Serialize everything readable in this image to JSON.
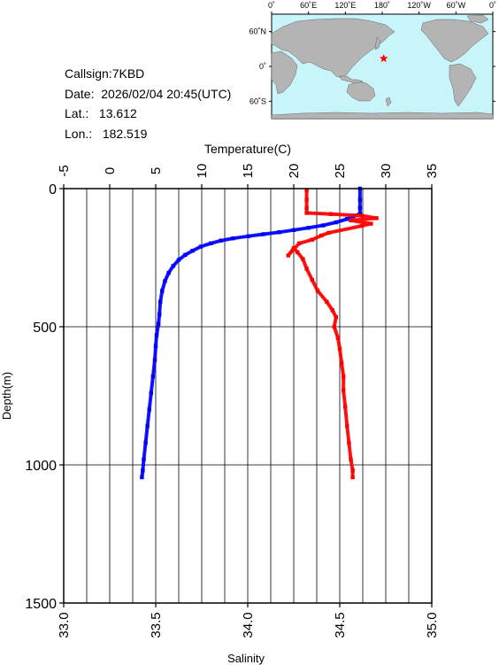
{
  "station": {
    "callsign_label": "Callsign:",
    "callsign": "7KBD",
    "date_label": "Date:",
    "date": "2026/02/04 20:45(UTC)",
    "lat_label": "Lat.:",
    "lat": "13.612",
    "lon_label": "Lon.:",
    "lon": "182.519"
  },
  "map": {
    "lon_ticks": [
      "0˚",
      "60˚E",
      "120˚E",
      "180˚",
      "120˚W",
      "60˚W",
      "0˚"
    ],
    "lat_ticks": [
      "60˚N",
      "0˚",
      "60˚S"
    ],
    "marker": {
      "lon": 182.5,
      "lat": 13.6
    },
    "colors": {
      "ocean": "#c8f5fa",
      "land": "#b4b4b4",
      "marker": "#ff0000"
    }
  },
  "chart_data": {
    "type": "line",
    "title": "",
    "y_axis": {
      "label": "Depth(m)",
      "lim": [
        0,
        1500
      ],
      "inverted": true,
      "ticks": [
        0,
        500,
        1000,
        1500
      ],
      "tick_labels": [
        "0",
        "500",
        "1000",
        "1500"
      ]
    },
    "x_axis_top": {
      "label": "Temperature(C)",
      "lim": [
        -5,
        35
      ],
      "ticks": [
        -5,
        0,
        5,
        10,
        15,
        20,
        25,
        30,
        35
      ],
      "tick_labels": [
        "-5",
        "0",
        "5",
        "10",
        "15",
        "20",
        "25",
        "30",
        "35"
      ]
    },
    "x_axis_bottom": {
      "label": "Salinity",
      "lim": [
        33.0,
        35.0
      ],
      "ticks": [
        33.0,
        33.5,
        34.0,
        34.5,
        35.0
      ],
      "tick_labels": [
        "33.0",
        "33.5",
        "34.0",
        "34.5",
        "35.0"
      ]
    },
    "grid": true,
    "series": [
      {
        "axis": "temperature",
        "color": "#0000ff",
        "points": [
          [
            27.2,
            0
          ],
          [
            27.2,
            40
          ],
          [
            27.2,
            70
          ],
          [
            27.2,
            92
          ],
          [
            26.5,
            100
          ],
          [
            25.8,
            110
          ],
          [
            24.6,
            122
          ],
          [
            23.2,
            133
          ],
          [
            21.6,
            142
          ],
          [
            20.0,
            150
          ],
          [
            18.4,
            158
          ],
          [
            16.7,
            165
          ],
          [
            15.1,
            172
          ],
          [
            13.4,
            180
          ],
          [
            12.1,
            188
          ],
          [
            11.0,
            198
          ],
          [
            9.9,
            210
          ],
          [
            9.0,
            225
          ],
          [
            8.2,
            240
          ],
          [
            7.5,
            258
          ],
          [
            6.9,
            280
          ],
          [
            6.4,
            305
          ],
          [
            6.0,
            335
          ],
          [
            5.7,
            370
          ],
          [
            5.5,
            410
          ],
          [
            5.4,
            455
          ],
          [
            5.3,
            490
          ],
          [
            5.1,
            530
          ],
          [
            5.0,
            570
          ],
          [
            4.9,
            620
          ],
          [
            4.7,
            680
          ],
          [
            4.5,
            740
          ],
          [
            4.3,
            800
          ],
          [
            4.1,
            860
          ],
          [
            3.9,
            920
          ],
          [
            3.7,
            980
          ],
          [
            3.6,
            1020
          ],
          [
            3.5,
            1045
          ]
        ]
      },
      {
        "axis": "salinity",
        "color": "#ff0000",
        "points": [
          [
            34.32,
            5
          ],
          [
            34.32,
            40
          ],
          [
            34.32,
            70
          ],
          [
            34.32,
            88
          ],
          [
            34.45,
            92
          ],
          [
            34.62,
            98
          ],
          [
            34.7,
            107
          ],
          [
            34.56,
            115
          ],
          [
            34.67,
            127
          ],
          [
            34.62,
            135
          ],
          [
            34.44,
            160
          ],
          [
            34.4,
            170
          ],
          [
            34.35,
            185
          ],
          [
            34.28,
            198
          ],
          [
            34.22,
            242
          ],
          [
            34.25,
            215
          ],
          [
            34.27,
            230
          ],
          [
            34.3,
            255
          ],
          [
            34.32,
            290
          ],
          [
            34.35,
            330
          ],
          [
            34.38,
            370
          ],
          [
            34.43,
            410
          ],
          [
            34.46,
            440
          ],
          [
            34.48,
            465
          ],
          [
            34.47,
            500
          ],
          [
            34.49,
            540
          ],
          [
            34.5,
            580
          ],
          [
            34.51,
            630
          ],
          [
            34.52,
            680
          ],
          [
            34.52,
            730
          ],
          [
            34.53,
            790
          ],
          [
            34.54,
            860
          ],
          [
            34.55,
            920
          ],
          [
            34.56,
            980
          ],
          [
            34.57,
            1020
          ],
          [
            34.57,
            1045
          ]
        ]
      }
    ]
  }
}
